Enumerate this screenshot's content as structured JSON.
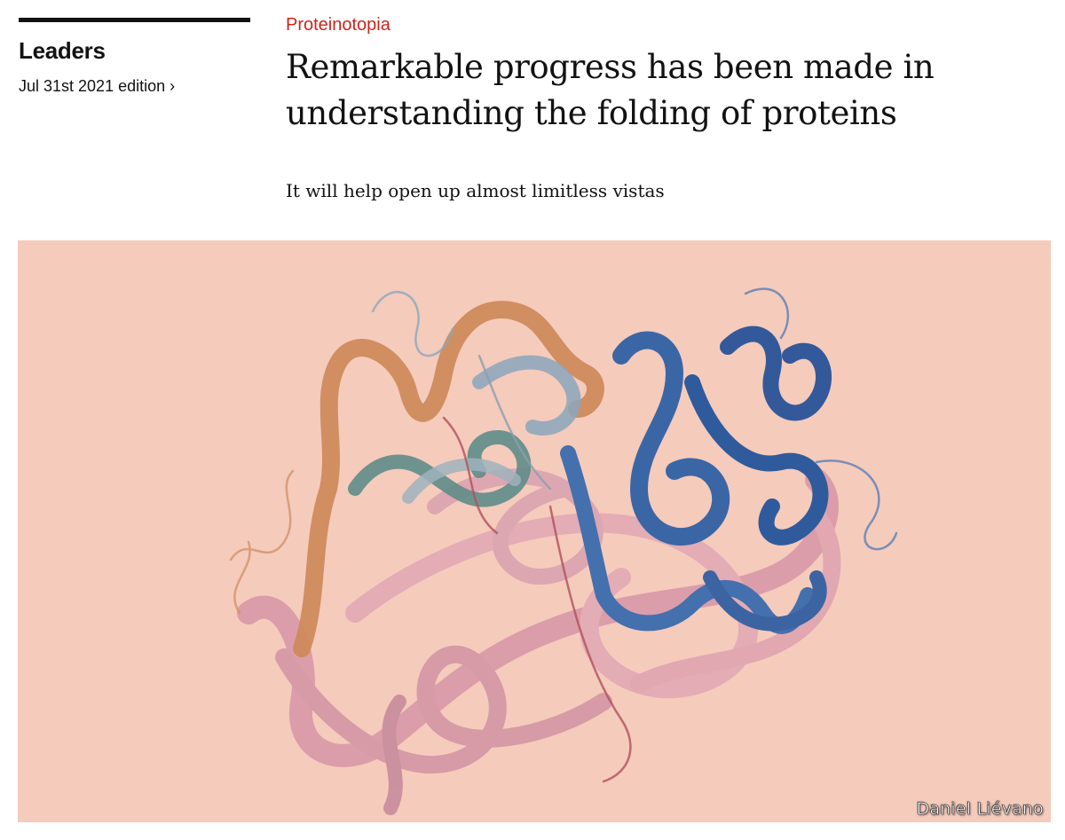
{
  "section": {
    "name": "Leaders",
    "edition": "Jul 31st 2021 edition",
    "edition_chevron": "›"
  },
  "article": {
    "rubric": "Proteinotopia",
    "headline": "Remarkable progress has been made in understanding the folding of proteins",
    "standfirst": "It will help open up almost limitless vistas"
  },
  "image": {
    "credit": "Daniel Liévano",
    "subject": "protein-ribbon-illustration"
  },
  "colors": {
    "rubric": "#c8271d",
    "text": "#121212",
    "image_background": "#f5cbbc",
    "ribbon_blue": "#3d67a6",
    "ribbon_pink": "#dba0ac",
    "ribbon_orange": "#d08a5e",
    "ribbon_teal": "#5d8a86",
    "ribbon_grey_blue": "#8aa7bc"
  }
}
